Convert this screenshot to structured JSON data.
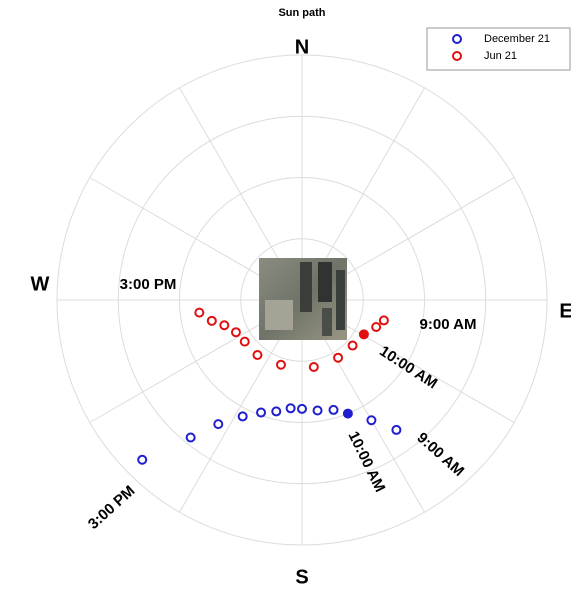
{
  "chart_data": {
    "type": "polar-scatter",
    "title": "Sun path",
    "direction_labels": [
      "N",
      "E",
      "S",
      "W"
    ],
    "theta_direction": "clockwise",
    "theta_zero": "N",
    "rlim": [
      0,
      90
    ],
    "rticks": [
      22.5,
      45,
      67.5,
      90
    ],
    "thetaticks": [
      0,
      30,
      60,
      90,
      120,
      150,
      180,
      210,
      240,
      270,
      300,
      330
    ],
    "grid": true,
    "legend": "upper right",
    "series": [
      {
        "name": "December 21",
        "color": "#1f1fd0",
        "filled_index": 10,
        "theta": [
          225,
          219,
          214,
          207,
          200,
          193,
          186,
          180,
          172,
          164,
          158,
          150,
          144
        ],
        "r": [
          83,
          65,
          55,
          48,
          44,
          42,
          40,
          40,
          41,
          42,
          45,
          51,
          59
        ]
      },
      {
        "name": "Jun 21",
        "color": "#e01010",
        "filled_index": 10,
        "theta": [
          263,
          257,
          252,
          244,
          234,
          219,
          198,
          170,
          148,
          132,
          119,
          110,
          104
        ],
        "r": [
          38,
          34,
          30,
          27,
          26,
          26,
          25,
          25,
          25,
          25,
          26,
          29,
          31
        ]
      }
    ],
    "annotations": [
      "3:00 PM",
      "9:00 AM",
      "10:00 AM",
      "10:00 AM",
      "9:00 AM",
      "3:00 PM"
    ]
  }
}
